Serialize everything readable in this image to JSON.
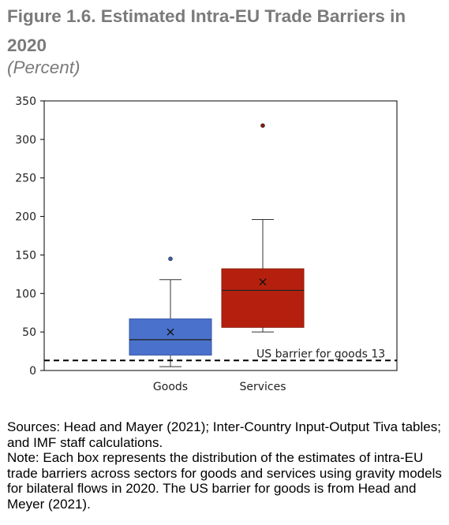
{
  "header": {
    "title": "Figure 1.6. Estimated Intra-EU Trade Barriers in 2020",
    "subtitle": "(Percent)"
  },
  "notes": {
    "sources": "Sources: Head and Mayer (2021); Inter-Country Input-Output Tiva tables; and IMF staff calculations.",
    "note": "Note: Each box represents the distribution of the estimates of intra-EU trade barriers across sectors for goods and services using gravity models for bilateral flows in 2020. The US barrier for goods is from Head and Meyer (2021)."
  },
  "chart_data": {
    "type": "box",
    "ylim": [
      0,
      350
    ],
    "yticks": [
      0,
      50,
      100,
      150,
      200,
      250,
      300,
      350
    ],
    "categories": [
      "Goods",
      "Services"
    ],
    "boxes": [
      {
        "category": "Goods",
        "color": "#4a72cc",
        "stroke": "#3a5aa8",
        "whisker_low": 5,
        "q1": 20,
        "median": 40,
        "q3": 67,
        "whisker_high": 118,
        "mean": 50,
        "outliers": [
          145
        ]
      },
      {
        "category": "Services",
        "color": "#b5200e",
        "stroke": "#8a1808",
        "whisker_low": 50,
        "q1": 56,
        "median": 104,
        "q3": 132,
        "whisker_high": 196,
        "mean": 115,
        "outliers": [
          318
        ]
      }
    ],
    "reference_line": {
      "value": 13,
      "label": "US barrier for goods 13",
      "style": "dashed"
    },
    "grid": false,
    "legend": "none"
  }
}
